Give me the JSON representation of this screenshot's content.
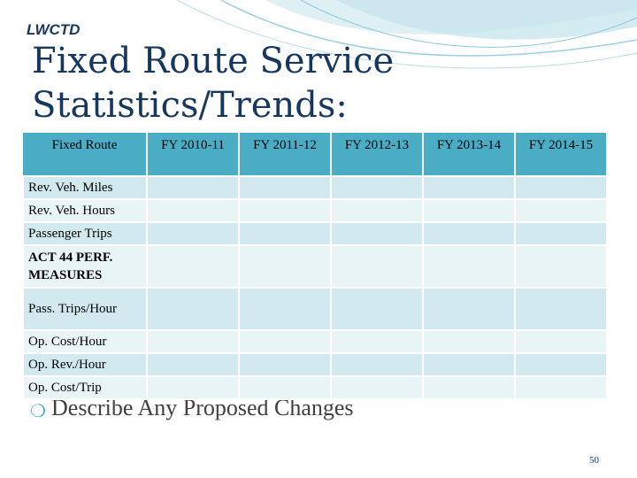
{
  "slide": {
    "brand": "LWCTD",
    "title": "Fixed Route Service Statistics/Trends:",
    "bullet_text": "Describe Any Proposed Changes",
    "page_number": "50"
  },
  "table": {
    "headers": [
      "Fixed Route",
      "FY 2010-11",
      "FY 2011-12",
      "FY 2012-13",
      "FY 2013-14",
      "FY 2014-15"
    ],
    "rows": [
      {
        "label": "Rev. Veh. Miles"
      },
      {
        "label": "Rev. Veh. Hours"
      },
      {
        "label": "Passenger Trips"
      },
      {
        "label": "ACT 44 PERF. MEASURES"
      },
      {
        "label": "Pass. Trips/Hour"
      },
      {
        "label": "Op. Cost/Hour"
      },
      {
        "label": "Op. Rev./Hour"
      },
      {
        "label": "Op. Cost/Trip"
      }
    ]
  },
  "colors": {
    "header_fill": "#4bacc6",
    "row_dark": "#d2e9f0",
    "row_light": "#e9f4f7",
    "title_color": "#17375e"
  }
}
